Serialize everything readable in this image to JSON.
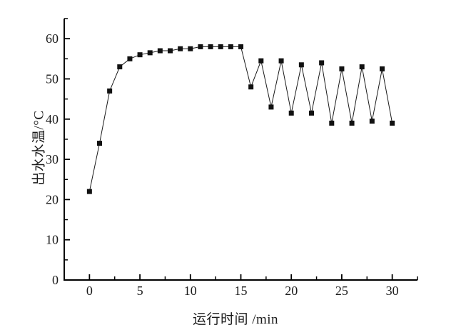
{
  "chart_data": {
    "type": "line",
    "title": "",
    "xlabel": "运行时间 /min",
    "ylabel": "出水水温/°C",
    "x": [
      0,
      1,
      2,
      3,
      4,
      5,
      6,
      7,
      8,
      9,
      10,
      11,
      12,
      13,
      14,
      15,
      16,
      17,
      18,
      19,
      20,
      21,
      22,
      23,
      24,
      25,
      26,
      27,
      28,
      29,
      30
    ],
    "series": [
      {
        "name": "出水水温",
        "values": [
          22,
          34,
          47,
          53,
          55,
          56,
          56.5,
          57,
          57,
          57.5,
          57.5,
          58,
          58,
          58,
          58,
          58,
          48,
          54.5,
          43,
          54.5,
          41.5,
          53.5,
          41.5,
          54,
          39,
          52.5,
          39,
          53,
          39.5,
          52.5,
          39
        ]
      }
    ],
    "xlim": [
      -2.5,
      32.5
    ],
    "ylim": [
      0,
      65
    ],
    "x_major_ticks": [
      0,
      5,
      10,
      15,
      20,
      25,
      30
    ],
    "x_minor_step": 2.5,
    "y_major_ticks": [
      0,
      10,
      20,
      30,
      40,
      50,
      60
    ],
    "y_minor_step": 5,
    "grid": false,
    "legend": "none",
    "marker": "filled-square",
    "line_color": "#1a1a1a",
    "marker_color": "#111111",
    "axis_color": "#000000",
    "background": "#ffffff"
  }
}
